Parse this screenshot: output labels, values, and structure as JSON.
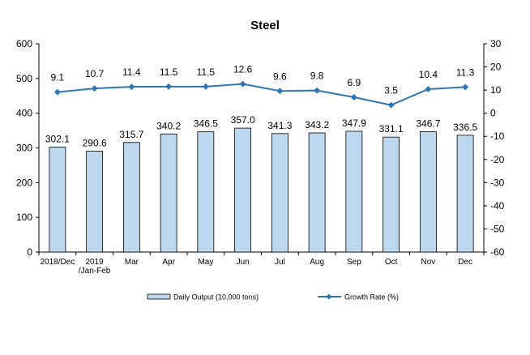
{
  "chart_data": {
    "type": "bar",
    "title": "Steel",
    "categories": [
      "2018/Dec",
      "2019\n/Jan-Feb",
      "Mar",
      "Apr",
      "May",
      "Jun",
      "Jul",
      "Aug",
      "Sep",
      "Oct",
      "Nov",
      "Dec"
    ],
    "series": [
      {
        "name": "Daily Output (10,000 tons)",
        "type": "bar",
        "axis": "left",
        "color": "#bdd7ee",
        "border_color": "#000000",
        "values": [
          302.1,
          290.6,
          315.7,
          340.2,
          346.5,
          357.0,
          341.3,
          343.2,
          347.9,
          331.1,
          346.7,
          336.5
        ],
        "labels": [
          "302.1",
          "290.6",
          "315.7",
          "340.2",
          "346.5",
          "357.0",
          "341.3",
          "343.2",
          "347.9",
          "331.1",
          "346.7",
          "336.5"
        ]
      },
      {
        "name": "Growth Rate (%)",
        "type": "line",
        "axis": "right",
        "color": "#2e75b6",
        "values": [
          9.1,
          10.7,
          11.4,
          11.5,
          11.5,
          12.6,
          9.6,
          9.8,
          6.9,
          3.5,
          10.4,
          11.3
        ],
        "labels": [
          "9.1",
          "10.7",
          "11.4",
          "11.5",
          "11.5",
          "12.6",
          "9.6",
          "9.8",
          "6.9",
          "3.5",
          "10.4",
          "11.3"
        ]
      }
    ],
    "y_left": {
      "ylim": [
        0,
        600
      ],
      "ticks": [
        "0",
        "100",
        "200",
        "300",
        "400",
        "500",
        "600"
      ]
    },
    "y_right": {
      "ylim": [
        -60,
        30
      ],
      "ticks": [
        "-60",
        "-50",
        "-40",
        "-30",
        "-20",
        "-10",
        "0",
        "10",
        "20",
        "30"
      ]
    },
    "grid": false,
    "legend_position": "bottom"
  }
}
